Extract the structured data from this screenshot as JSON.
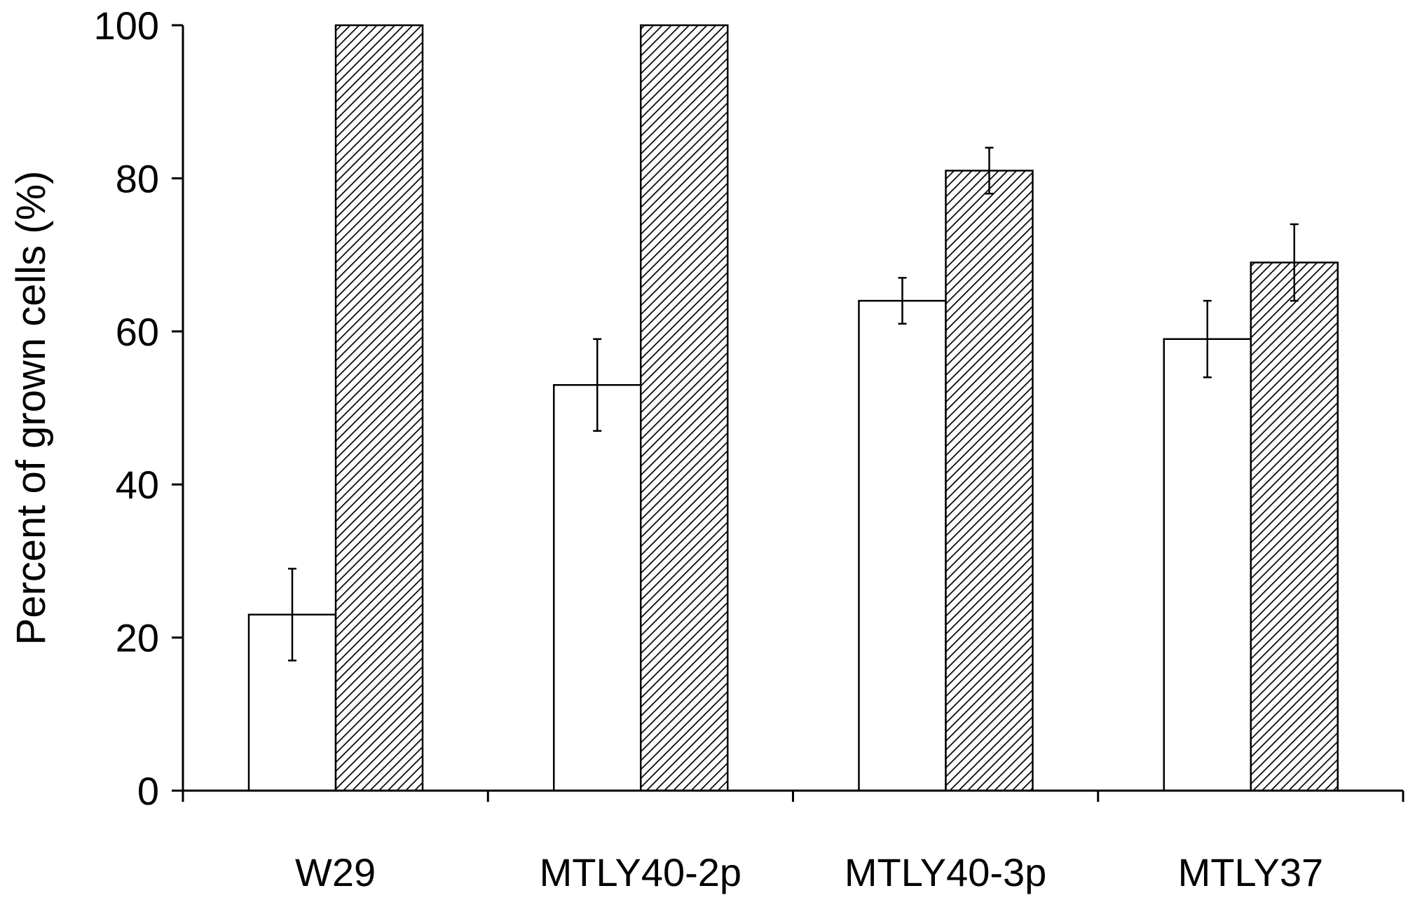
{
  "chart_data": {
    "type": "bar",
    "title": "",
    "xlabel": "",
    "ylabel": "Percent of grown cells (%)",
    "ylim": [
      0,
      100
    ],
    "yticks": [
      0,
      20,
      40,
      60,
      80,
      100
    ],
    "grid": false,
    "legend": "none",
    "categories": [
      "W29",
      "MTLY40-2p",
      "MTLY40-3p",
      "MTLY37"
    ],
    "series": [
      {
        "fill": "white",
        "values": [
          23,
          53,
          64,
          59
        ],
        "errors": [
          6,
          6,
          3,
          5
        ]
      },
      {
        "fill": "diagonal-hatch",
        "values": [
          100,
          100,
          81,
          69
        ],
        "errors": [
          0,
          0,
          3,
          5
        ]
      }
    ]
  },
  "colors": {
    "axis": "#000000",
    "bar_outline": "#000000",
    "hatch_line": "#000000",
    "background": "#ffffff"
  }
}
